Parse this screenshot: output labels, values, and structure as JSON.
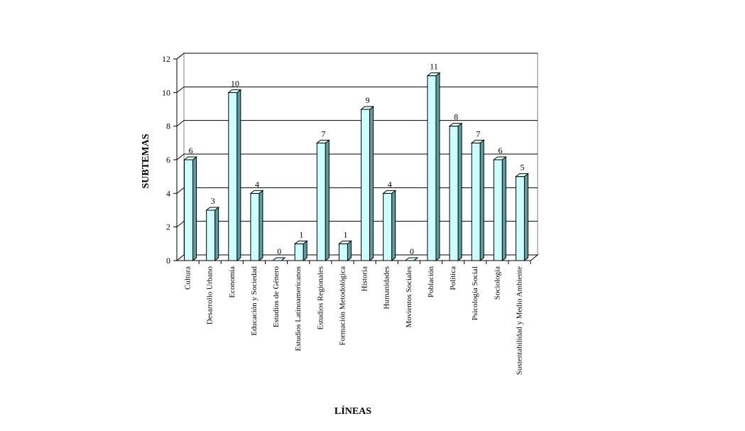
{
  "chart_data": {
    "type": "bar",
    "title": "",
    "xlabel": "LÍNEAS",
    "ylabel": "SUBTEMAS",
    "ylim": [
      0,
      12
    ],
    "yticks": [
      0,
      2,
      4,
      6,
      8,
      10,
      12
    ],
    "grid": true,
    "legend": "none",
    "style": "3d-column",
    "colors": {
      "bar_front": "#ccffff",
      "bar_side": "#5f9ea0",
      "bar_top": "#e8ffff",
      "grid": "#000000"
    },
    "categories": [
      "Cultura",
      "Desarrollo Urbano",
      "Economía",
      "Educación y Sociedad",
      "Estudios de Género",
      "Estudios Latinoamericanos",
      "Estudios Regionales",
      "Formación Metodológica",
      "Historia",
      "Humanidades",
      "Movientos Sociales",
      "Población",
      "Política",
      "Psicología Social",
      "Sociología",
      "Sustentabilidad y Medio Ambiente"
    ],
    "values": [
      6,
      3,
      10,
      4,
      0,
      1,
      7,
      1,
      9,
      4,
      0,
      11,
      8,
      7,
      6,
      5
    ]
  }
}
